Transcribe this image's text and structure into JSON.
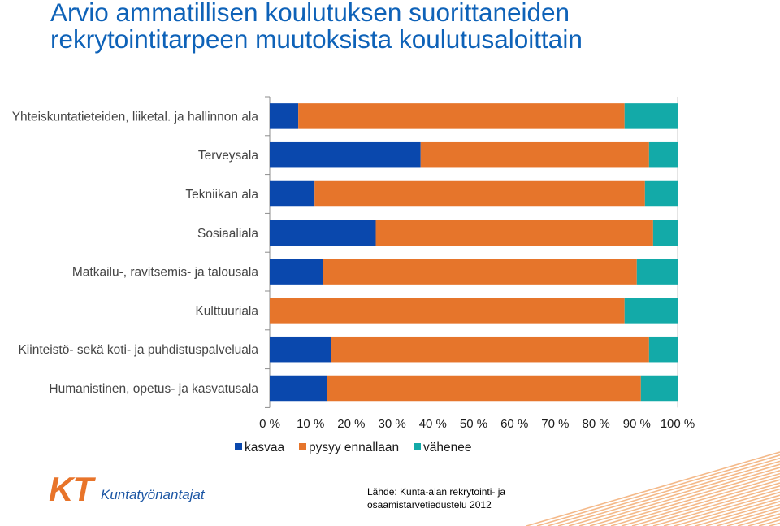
{
  "title": {
    "line1": "Arvio ammatillisen koulutuksen suorittaneiden",
    "line2": "rekrytointitarpeen muutoksista koulutusaloittain"
  },
  "chart_data": {
    "type": "bar",
    "horizontal": true,
    "stacked_percent": true,
    "categories": [
      "Yhteiskuntatieteiden, liiketal. ja hallinnon ala",
      "Terveysala",
      "Tekniikan ala",
      "Sosiaaliala",
      "Matkailu-, ravitsemis- ja talousala",
      "Kulttuuriala",
      "Kiinteistö- sekä koti- ja puhdistuspalveluala",
      "Humanistinen, opetus- ja kasvatusala"
    ],
    "series": [
      {
        "name": "kasvaa",
        "color": "#0a48ad",
        "values": [
          7,
          37,
          11,
          26,
          13,
          0,
          15,
          14
        ]
      },
      {
        "name": "pysyy ennallaan",
        "color": "#e6752b",
        "values": [
          80,
          56,
          81,
          68,
          77,
          87,
          78,
          77
        ]
      },
      {
        "name": "vähenee",
        "color": "#13aaa8",
        "values": [
          13,
          7,
          8,
          6,
          10,
          13,
          7,
          9
        ]
      }
    ],
    "xlim": [
      0,
      100
    ],
    "xtick_values": [
      0,
      10,
      20,
      30,
      40,
      50,
      60,
      70,
      80,
      90,
      100
    ],
    "xticks": [
      "0 %",
      "10 %",
      "20 %",
      "30 %",
      "40 %",
      "50 %",
      "60 %",
      "70 %",
      "80 %",
      "90 %",
      "100 %"
    ],
    "legend_position": "bottom"
  },
  "logo": {
    "mark": "KT",
    "name": "Kuntatyönantajat"
  },
  "source": {
    "line1": "Lähde: Kunta-alan rekrytointi- ja",
    "line2": "osaamistarvetiedustelu 2012"
  },
  "theme": {
    "brand_orange": "#e8742a",
    "brand_blue": "#1c56a4"
  }
}
